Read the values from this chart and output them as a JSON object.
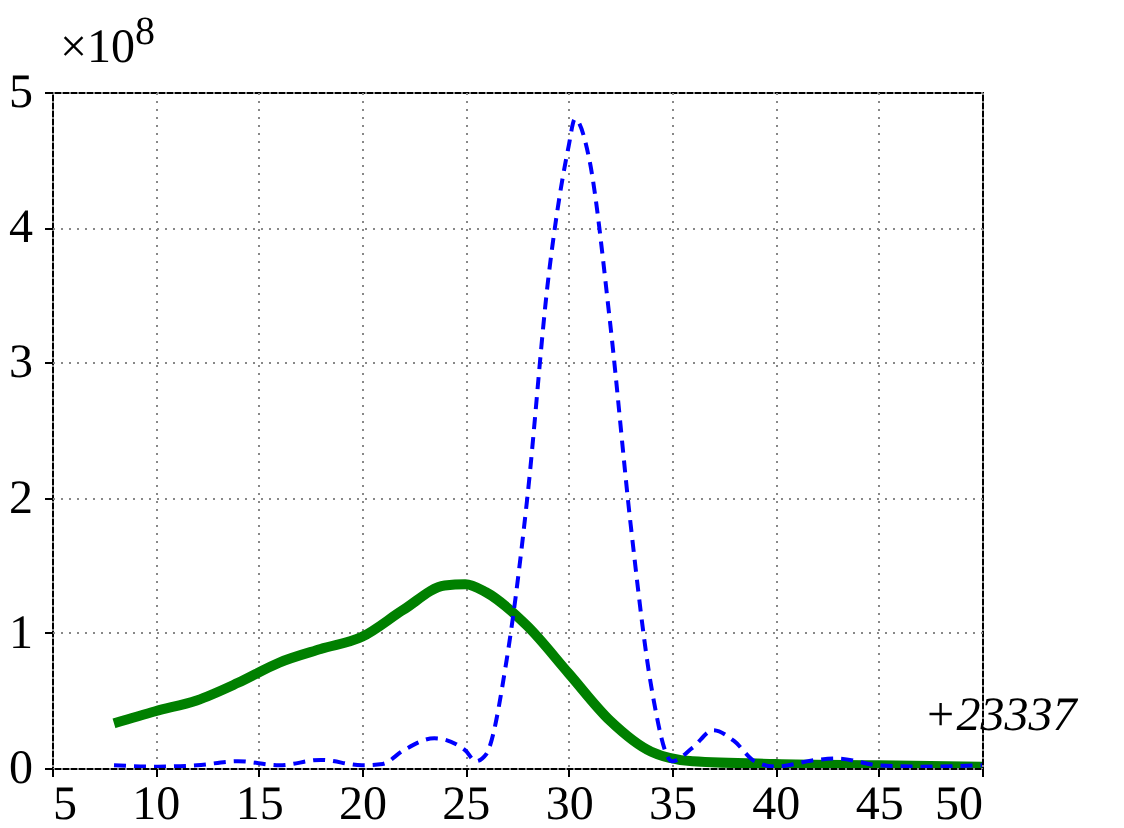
{
  "chart_data": {
    "type": "line",
    "x": [
      8,
      10,
      12,
      14,
      16,
      18,
      20,
      22,
      24,
      25,
      26,
      28,
      30,
      32,
      34,
      36,
      40,
      45,
      50
    ],
    "series": [
      {
        "color": "#008000",
        "line_style": "solid",
        "values": [
          0.33,
          0.42,
          0.5,
          0.63,
          0.78,
          0.88,
          0.97,
          1.17,
          1.35,
          1.36,
          1.3,
          1.05,
          0.7,
          0.35,
          0.12,
          0.05,
          0.03,
          0.02,
          0.01
        ]
      },
      {
        "color": "#0000ff",
        "line_style": "dashed",
        "x": [
          8,
          10,
          12,
          14,
          16,
          18,
          20,
          21,
          22,
          23.5,
          25,
          25.5,
          26,
          27,
          28,
          29,
          30,
          30.3,
          31,
          32,
          33,
          34,
          35,
          36,
          37,
          38,
          39,
          40,
          42,
          43,
          45,
          47,
          50
        ],
        "values": [
          0.02,
          0.01,
          0.02,
          0.05,
          0.02,
          0.06,
          0.02,
          0.03,
          0.13,
          0.22,
          0.13,
          0.05,
          0.1,
          0.8,
          2.0,
          3.6,
          4.6,
          4.8,
          4.5,
          3.3,
          1.8,
          0.6,
          0.05,
          0.15,
          0.28,
          0.2,
          0.05,
          0.01,
          0.06,
          0.07,
          0.02,
          0.01,
          0.02
        ]
      }
    ],
    "xlim": [
      5,
      50
    ],
    "xticks": [
      5,
      10,
      15,
      20,
      25,
      30,
      35,
      40,
      45,
      50
    ],
    "ylim": [
      0,
      5
    ],
    "yticks": [
      0,
      1,
      2,
      3,
      4,
      5
    ],
    "grid": true,
    "marker": "none",
    "annotations": [
      "×10$^{8}$",
      "+23337"
    ]
  }
}
